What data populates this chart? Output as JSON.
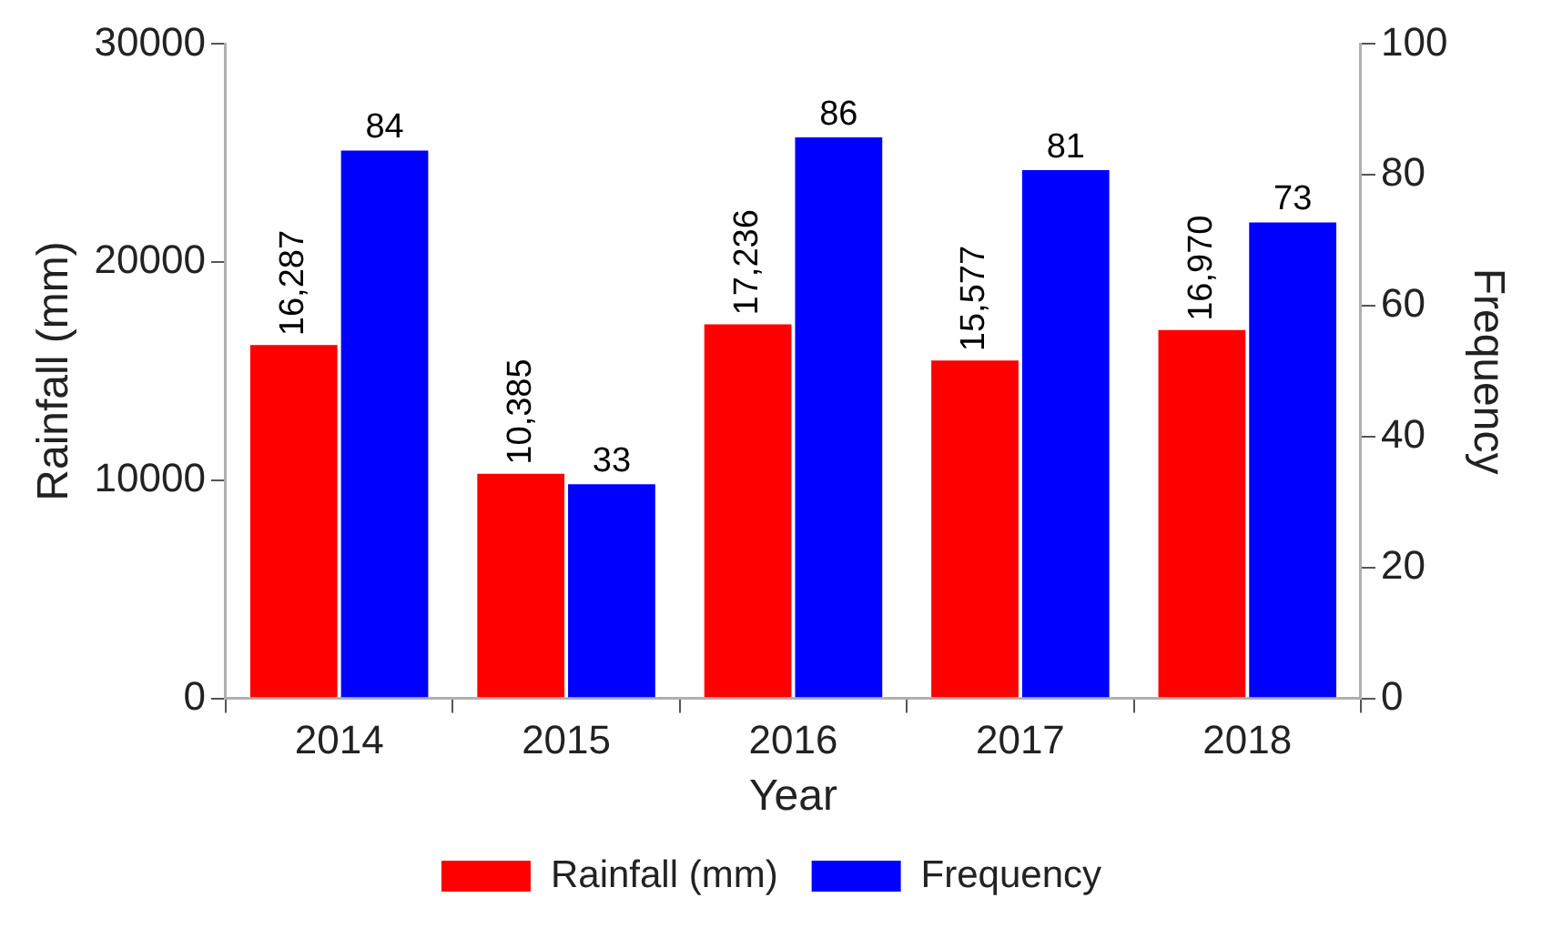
{
  "chart_data": {
    "type": "bar",
    "xlabel": "Year",
    "ylabel": "Rainfall (mm)",
    "y2label": "Frequency",
    "categories": [
      "2014",
      "2015",
      "2016",
      "2017",
      "2018"
    ],
    "series": [
      {
        "name": "Rainfall (mm)",
        "color": "#ff0000",
        "values": [
          16287,
          10385,
          17236,
          15577,
          16970
        ],
        "value_labels": [
          "16,287",
          "10,385",
          "17,236",
          "15,577",
          "16,970"
        ]
      },
      {
        "name": "Frequency",
        "color": "#0000ff",
        "axis": "y2",
        "values": [
          84,
          33,
          86,
          81,
          73
        ],
        "value_labels": [
          "84",
          "33",
          "86",
          "81",
          "73"
        ]
      }
    ],
    "ylim": [
      0,
      30000
    ],
    "yticks": [
      0,
      10000,
      20000,
      30000
    ],
    "y2lim": [
      0,
      100
    ],
    "y2ticks": [
      0,
      20,
      40,
      60,
      80,
      100
    ],
    "grid": false,
    "legend": "bottom"
  }
}
